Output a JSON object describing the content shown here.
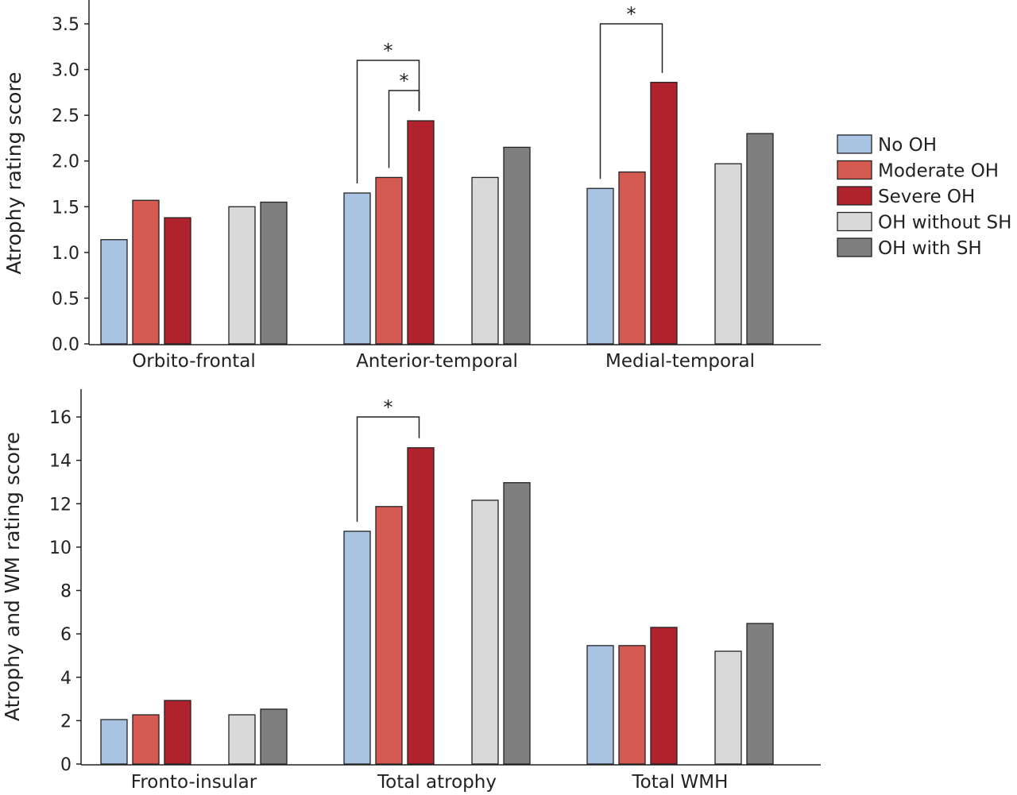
{
  "chart_data": [
    {
      "type": "bar",
      "ylabel": "Atrophy rating score",
      "ylim": [
        0,
        3.5
      ],
      "yticks": [
        "0.0",
        "0.5",
        "1.0",
        "1.5",
        "2.0",
        "2.5",
        "3.0",
        "3.5"
      ],
      "categories": [
        "Orbito-frontal",
        "Anterior-temporal",
        "Medial-temporal"
      ],
      "series": [
        {
          "name": "No OH",
          "color": "#a9c3e3",
          "values": [
            1.14,
            1.65,
            1.7
          ]
        },
        {
          "name": "Moderate OH",
          "color": "#d55a51",
          "values": [
            1.57,
            1.82,
            1.88
          ]
        },
        {
          "name": "Severe OH",
          "color": "#b0232c",
          "values": [
            1.38,
            2.44,
            2.86
          ]
        },
        {
          "name": "OH without SH",
          "color": "#d9d9d9",
          "values": [
            1.5,
            1.82,
            1.97
          ]
        },
        {
          "name": "OH with SH",
          "color": "#7f7f7f",
          "values": [
            1.55,
            2.15,
            2.3
          ]
        }
      ],
      "annotations": [
        {
          "category": "Anterior-temporal",
          "from": "No OH",
          "to": "Severe OH",
          "label": "*",
          "level": 3.1
        },
        {
          "category": "Anterior-temporal",
          "from": "Moderate OH",
          "to": "Severe OH",
          "label": "*",
          "level": 2.77
        },
        {
          "category": "Medial-temporal",
          "from": "No OH",
          "to": "Severe OH",
          "label": "*",
          "level": 3.5
        }
      ],
      "grid": false,
      "legend": "right"
    },
    {
      "type": "bar",
      "ylabel": "Atrophy and WM rating score",
      "ylim": [
        0,
        17
      ],
      "yticks": [
        "0",
        "2",
        "4",
        "6",
        "8",
        "10",
        "12",
        "14",
        "16"
      ],
      "categories": [
        "Fronto-insular",
        "Total atrophy",
        "Total WMH"
      ],
      "series": [
        {
          "name": "No OH",
          "color": "#a9c3e3",
          "values": [
            2.05,
            10.73,
            5.46
          ]
        },
        {
          "name": "Moderate OH",
          "color": "#d55a51",
          "values": [
            2.27,
            11.87,
            5.46
          ]
        },
        {
          "name": "Severe OH",
          "color": "#b0232c",
          "values": [
            2.93,
            14.58,
            6.3
          ]
        },
        {
          "name": "OH without SH",
          "color": "#d9d9d9",
          "values": [
            2.27,
            12.16,
            5.2
          ]
        },
        {
          "name": "OH with SH",
          "color": "#7f7f7f",
          "values": [
            2.53,
            12.97,
            6.48
          ]
        }
      ],
      "annotations": [
        {
          "category": "Total atrophy",
          "from": "No OH",
          "to": "Severe OH",
          "label": "*",
          "level": 16.0
        }
      ],
      "grid": false
    }
  ],
  "legend": [
    "No OH",
    "Moderate OH",
    "Severe OH",
    "OH without SH",
    "OH with SH"
  ]
}
